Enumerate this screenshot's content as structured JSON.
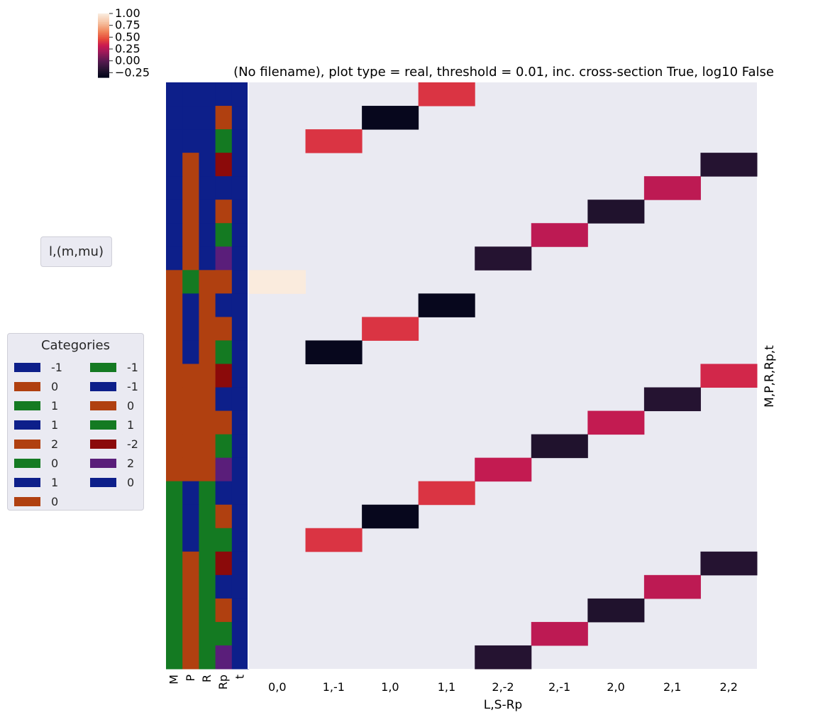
{
  "title": "(No filename), plot type = real, threshold = 0.01, inc. cross-section True, log10 False",
  "colorbar": {
    "ticks": [
      "1.00",
      "0.75",
      "0.50",
      "0.25",
      "0.00",
      "−0.25"
    ],
    "min": -0.35,
    "max": 1.0
  },
  "legend_lml": {
    "label": "l,(m,mu)"
  },
  "legend_categories": {
    "title": "Categories",
    "col1": [
      {
        "label": "-1",
        "color": "#0d1f8a"
      },
      {
        "label": "0",
        "color": "#b04010"
      },
      {
        "label": "1",
        "color": "#147a22"
      },
      {
        "label": "1",
        "color": "#0d1f8a"
      },
      {
        "label": "2",
        "color": "#b04010"
      },
      {
        "label": "0",
        "color": "#147a22"
      },
      {
        "label": "1",
        "color": "#0d1f8a"
      },
      {
        "label": "0",
        "color": "#b04010"
      }
    ],
    "col2": [
      {
        "label": "-1",
        "color": "#147a22"
      },
      {
        "label": "-1",
        "color": "#0d1f8a"
      },
      {
        "label": "0",
        "color": "#b04010"
      },
      {
        "label": "1",
        "color": "#147a22"
      },
      {
        "label": "-2",
        "color": "#8b0a0a"
      },
      {
        "label": "2",
        "color": "#5a1e7a"
      },
      {
        "label": "0",
        "color": "#0d1f8a"
      }
    ]
  },
  "chart_data": {
    "type": "heatmap",
    "xlabel": "L,S-Rp",
    "ylabel": "M,P,R,Rp,t",
    "x_categories": [
      "0,0",
      "1,-1",
      "1,0",
      "1,1",
      "2,-2",
      "2,-1",
      "2,0",
      "2,1",
      "2,2"
    ],
    "row_label_columns": [
      "M",
      "P",
      "R",
      "Rp",
      "t"
    ],
    "category_colors": {
      "M": "#147a22",
      "P": "#b04010",
      "R": "#0d1f8a",
      "Rp": "#5a1e7a",
      "t": "#0d1f8a",
      "-2": "#8b0a0a"
    },
    "row_colors": [
      [
        "#0d1f8a",
        "#0d1f8a",
        "#0d1f8a",
        "#0d1f8a",
        "#0d1f8a"
      ],
      [
        "#0d1f8a",
        "#0d1f8a",
        "#0d1f8a",
        "#b04010",
        "#0d1f8a"
      ],
      [
        "#0d1f8a",
        "#0d1f8a",
        "#0d1f8a",
        "#147a22",
        "#0d1f8a"
      ],
      [
        "#0d1f8a",
        "#b04010",
        "#0d1f8a",
        "#8b0a0a",
        "#0d1f8a"
      ],
      [
        "#0d1f8a",
        "#b04010",
        "#0d1f8a",
        "#0d1f8a",
        "#0d1f8a"
      ],
      [
        "#0d1f8a",
        "#b04010",
        "#0d1f8a",
        "#b04010",
        "#0d1f8a"
      ],
      [
        "#0d1f8a",
        "#b04010",
        "#0d1f8a",
        "#147a22",
        "#0d1f8a"
      ],
      [
        "#0d1f8a",
        "#b04010",
        "#0d1f8a",
        "#5a1e7a",
        "#0d1f8a"
      ],
      [
        "#b04010",
        "#147a22",
        "#b04010",
        "#b04010",
        "#0d1f8a"
      ],
      [
        "#b04010",
        "#0d1f8a",
        "#b04010",
        "#0d1f8a",
        "#0d1f8a"
      ],
      [
        "#b04010",
        "#0d1f8a",
        "#b04010",
        "#b04010",
        "#0d1f8a"
      ],
      [
        "#b04010",
        "#0d1f8a",
        "#b04010",
        "#147a22",
        "#0d1f8a"
      ],
      [
        "#b04010",
        "#b04010",
        "#b04010",
        "#8b0a0a",
        "#0d1f8a"
      ],
      [
        "#b04010",
        "#b04010",
        "#b04010",
        "#0d1f8a",
        "#0d1f8a"
      ],
      [
        "#b04010",
        "#b04010",
        "#b04010",
        "#b04010",
        "#0d1f8a"
      ],
      [
        "#b04010",
        "#b04010",
        "#b04010",
        "#147a22",
        "#0d1f8a"
      ],
      [
        "#b04010",
        "#b04010",
        "#b04010",
        "#5a1e7a",
        "#0d1f8a"
      ],
      [
        "#147a22",
        "#0d1f8a",
        "#147a22",
        "#0d1f8a",
        "#0d1f8a"
      ],
      [
        "#147a22",
        "#0d1f8a",
        "#147a22",
        "#b04010",
        "#0d1f8a"
      ],
      [
        "#147a22",
        "#0d1f8a",
        "#147a22",
        "#147a22",
        "#0d1f8a"
      ],
      [
        "#147a22",
        "#b04010",
        "#147a22",
        "#8b0a0a",
        "#0d1f8a"
      ],
      [
        "#147a22",
        "#b04010",
        "#147a22",
        "#0d1f8a",
        "#0d1f8a"
      ],
      [
        "#147a22",
        "#b04010",
        "#147a22",
        "#b04010",
        "#0d1f8a"
      ],
      [
        "#147a22",
        "#b04010",
        "#147a22",
        "#147a22",
        "#0d1f8a"
      ],
      [
        "#147a22",
        "#b04010",
        "#147a22",
        "#5a1e7a",
        "#0d1f8a"
      ]
    ],
    "cells": [
      {
        "row": 0,
        "col": 3,
        "value": 0.4
      },
      {
        "row": 1,
        "col": 2,
        "value": -0.33
      },
      {
        "row": 2,
        "col": 1,
        "value": 0.4
      },
      {
        "row": 3,
        "col": 8,
        "value": -0.2
      },
      {
        "row": 4,
        "col": 7,
        "value": 0.28
      },
      {
        "row": 5,
        "col": 6,
        "value": -0.22
      },
      {
        "row": 6,
        "col": 5,
        "value": 0.28
      },
      {
        "row": 7,
        "col": 4,
        "value": -0.2
      },
      {
        "row": 8,
        "col": 0,
        "value": 1.0
      },
      {
        "row": 9,
        "col": 3,
        "value": -0.33
      },
      {
        "row": 10,
        "col": 2,
        "value": 0.4
      },
      {
        "row": 11,
        "col": 1,
        "value": -0.33
      },
      {
        "row": 12,
        "col": 8,
        "value": 0.36
      },
      {
        "row": 13,
        "col": 7,
        "value": -0.2
      },
      {
        "row": 14,
        "col": 6,
        "value": 0.3
      },
      {
        "row": 15,
        "col": 5,
        "value": -0.22
      },
      {
        "row": 16,
        "col": 4,
        "value": 0.3
      },
      {
        "row": 17,
        "col": 3,
        "value": 0.4
      },
      {
        "row": 18,
        "col": 2,
        "value": -0.33
      },
      {
        "row": 19,
        "col": 1,
        "value": 0.4
      },
      {
        "row": 20,
        "col": 8,
        "value": -0.2
      },
      {
        "row": 21,
        "col": 7,
        "value": 0.28
      },
      {
        "row": 22,
        "col": 6,
        "value": -0.22
      },
      {
        "row": 23,
        "col": 5,
        "value": 0.28
      },
      {
        "row": 24,
        "col": 4,
        "value": -0.2
      }
    ],
    "n_rows": 25,
    "vmin": -0.35,
    "vmax": 1.0,
    "colormap": "rocket"
  }
}
